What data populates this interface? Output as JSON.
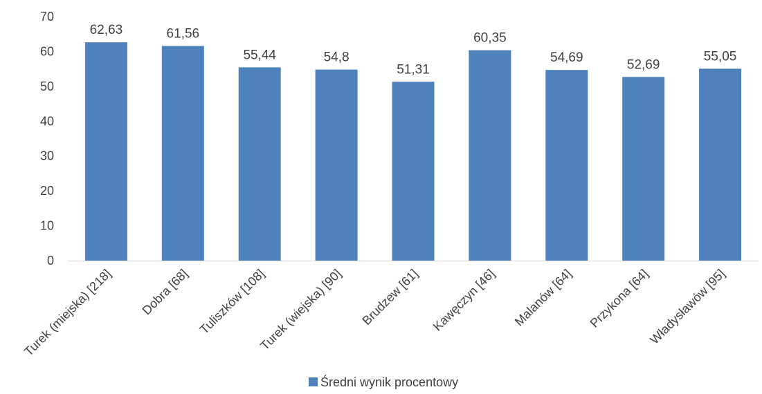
{
  "chart_data": {
    "type": "bar",
    "title": "",
    "xlabel": "",
    "ylabel": "",
    "categories": [
      "Turek (miejska) [218]",
      "Dobra [68]",
      "Tuliszków [108]",
      "Turek (wiejska) [90]",
      "Brudzew [61]",
      "Kawęczyn [46]",
      "Malanów [64]",
      "Przykona [64]",
      "Władysławów [95]"
    ],
    "series": [
      {
        "name": "Średni wynik procentowy",
        "values": [
          62.63,
          61.56,
          55.44,
          54.8,
          51.31,
          60.35,
          54.69,
          52.69,
          55.05
        ],
        "value_labels": [
          "62,63",
          "61,56",
          "55,44",
          "54,8",
          "51,31",
          "60,35",
          "54,69",
          "52,69",
          "55,05"
        ],
        "color": "#4F81BD"
      }
    ],
    "ylim": [
      0,
      70
    ],
    "yticks": [
      "0",
      "10",
      "20",
      "30",
      "40",
      "50",
      "60",
      "70"
    ],
    "grid": false,
    "legend_position": "bottom",
    "axis_color": "#D9D9D9",
    "text_color": "#404040"
  }
}
